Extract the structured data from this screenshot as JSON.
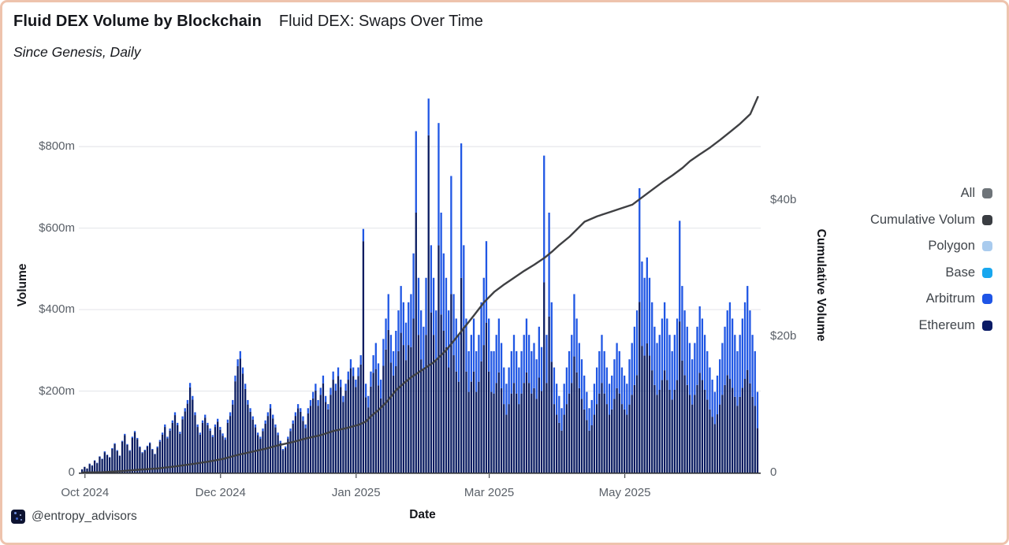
{
  "header": {
    "title_bold": "Fluid DEX Volume by Blockchain",
    "title_regular": "Fluid DEX: Swaps Over Time",
    "subtitle": "Since Genesis, Daily"
  },
  "watermark": {
    "handle": "@entropy_advisors"
  },
  "legend": {
    "items": [
      {
        "label": "All",
        "color": "#6e7479"
      },
      {
        "label": "Cumulative Volum",
        "color": "#3a3d42"
      },
      {
        "label": "Polygon",
        "color": "#a9cbee"
      },
      {
        "label": "Base",
        "color": "#18a7ef"
      },
      {
        "label": "Arbitrum",
        "color": "#1f55e6"
      },
      {
        "label": "Ethereum",
        "color": "#0a1b66"
      }
    ]
  },
  "colors": {
    "ethereum": "#0a1c61",
    "arbitrum": "#2057e4",
    "cumulative_line": "#3f4043",
    "grid": "#e8eaed",
    "axis_line": "#2e3036",
    "border": "#eec3ad"
  },
  "chart_data": {
    "type": "bar",
    "title": "Fluid DEX Volume by Blockchain — Fluid DEX: Swaps Over Time",
    "subtitle": "Since Genesis, Daily",
    "x_axis": {
      "label": "Date",
      "tick_labels": [
        "Oct 2024",
        "Dec 2024",
        "Jan 2025",
        "Mar 2025",
        "May 2025"
      ],
      "tick_day_indices": [
        1,
        55,
        109,
        162,
        216
      ]
    },
    "y_axis_left": {
      "label": "Volume",
      "tick_labels": [
        "0",
        "$200m",
        "$400m",
        "$600m",
        "$800m"
      ],
      "tick_values_m": [
        0,
        200,
        400,
        600,
        800
      ],
      "range_max_m": 951
    },
    "y_axis_right": {
      "label": "Cumulative Volume",
      "tick_labels": [
        "0",
        "$20b",
        "$40b"
      ],
      "tick_values_b": [
        0,
        20,
        40
      ],
      "range_max_b": 57
    },
    "series": {
      "stacked_order_bottom_to_top": [
        "Ethereum",
        "Arbitrum"
      ],
      "total_usd_m": [
        8,
        14,
        10,
        22,
        18,
        30,
        24,
        40,
        34,
        52,
        44,
        38,
        60,
        72,
        55,
        42,
        78,
        95,
        70,
        55,
        88,
        102,
        85,
        64,
        50,
        56,
        66,
        74,
        58,
        46,
        64,
        80,
        98,
        118,
        88,
        108,
        128,
        148,
        122,
        100,
        138,
        158,
        178,
        220,
        188,
        148,
        118,
        98,
        128,
        142,
        122,
        108,
        92,
        118,
        132,
        112,
        96,
        86,
        130,
        148,
        178,
        238,
        278,
        298,
        258,
        218,
        178,
        158,
        138,
        118,
        98,
        88,
        108,
        128,
        148,
        168,
        142,
        118,
        98,
        78,
        58,
        64,
        88,
        108,
        128,
        148,
        168,
        158,
        138,
        118,
        158,
        178,
        198,
        218,
        178,
        208,
        238,
        188,
        168,
        208,
        248,
        218,
        258,
        228,
        188,
        218,
        248,
        278,
        258,
        228,
        258,
        288,
        598,
        218,
        188,
        248,
        288,
        318,
        268,
        228,
        328,
        378,
        438,
        338,
        298,
        348,
        398,
        458,
        418,
        368,
        418,
        438,
        538,
        838,
        478,
        398,
        358,
        478,
        918,
        558,
        478,
        398,
        858,
        638,
        538,
        478,
        398,
        728,
        438,
        378,
        338,
        808,
        558,
        378,
        298,
        338,
        378,
        298,
        338,
        418,
        478,
        568,
        378,
        298,
        298,
        338,
        378,
        318,
        258,
        218,
        258,
        298,
        338,
        298,
        258,
        298,
        338,
        378,
        338,
        298,
        318,
        278,
        358,
        308,
        778,
        338,
        638,
        418,
        258,
        218,
        188,
        158,
        218,
        258,
        298,
        338,
        438,
        378,
        318,
        278,
        238,
        198,
        158,
        178,
        218,
        258,
        298,
        338,
        298,
        258,
        218,
        238,
        278,
        318,
        298,
        258,
        238,
        218,
        278,
        318,
        358,
        398,
        698,
        518,
        478,
        528,
        478,
        418,
        358,
        318,
        338,
        378,
        418,
        378,
        338,
        298,
        338,
        378,
        618,
        458,
        398,
        358,
        318,
        278,
        318,
        358,
        408,
        378,
        338,
        298,
        258,
        228,
        198,
        238,
        278,
        318,
        358,
        398,
        418,
        378,
        338,
        298,
        338,
        378,
        418,
        458,
        398,
        338,
        298,
        198
      ],
      "arbitrum_usd_m": [
        0,
        0,
        0,
        1,
        1,
        1,
        1,
        1,
        1,
        2,
        1,
        1,
        2,
        2,
        2,
        1,
        2,
        3,
        2,
        2,
        3,
        3,
        3,
        2,
        2,
        2,
        2,
        2,
        2,
        1,
        3,
        4,
        5,
        6,
        4,
        5,
        6,
        7,
        6,
        5,
        7,
        8,
        9,
        11,
        9,
        7,
        6,
        5,
        6,
        7,
        6,
        5,
        5,
        6,
        7,
        7,
        6,
        5,
        8,
        9,
        11,
        14,
        17,
        18,
        15,
        13,
        11,
        9,
        8,
        7,
        6,
        5,
        6,
        8,
        9,
        10,
        9,
        7,
        6,
        5,
        3,
        4,
        5,
        6,
        8,
        9,
        10,
        9,
        11,
        9,
        13,
        14,
        16,
        17,
        14,
        17,
        19,
        15,
        13,
        17,
        20,
        17,
        21,
        18,
        15,
        17,
        20,
        22,
        21,
        18,
        21,
        23,
        30,
        33,
        28,
        37,
        43,
        64,
        54,
        46,
        66,
        76,
        88,
        68,
        60,
        87,
        100,
        115,
        105,
        92,
        105,
        130,
        160,
        200,
        140,
        120,
        105,
        140,
        90,
        165,
        140,
        120,
        300,
        250,
        190,
        170,
        140,
        290,
        150,
        130,
        115,
        330,
        200,
        130,
        100,
        115,
        130,
        100,
        115,
        145,
        165,
        200,
        130,
        100,
        104,
        118,
        132,
        111,
        90,
        76,
        90,
        104,
        118,
        104,
        90,
        104,
        118,
        132,
        118,
        104,
        111,
        97,
        125,
        108,
        311,
        118,
        255,
        146,
        90,
        76,
        66,
        55,
        76,
        90,
        104,
        118,
        153,
        132,
        111,
        97,
        83,
        69,
        55,
        62,
        76,
        90,
        104,
        118,
        104,
        90,
        76,
        83,
        97,
        111,
        104,
        90,
        83,
        76,
        111,
        127,
        143,
        159,
        279,
        207,
        191,
        211,
        191,
        167,
        143,
        127,
        135,
        151,
        167,
        151,
        135,
        119,
        135,
        151,
        247,
        183,
        159,
        143,
        127,
        111,
        127,
        143,
        163,
        151,
        135,
        119,
        103,
        91,
        79,
        95,
        111,
        127,
        143,
        159,
        188,
        170,
        152,
        134,
        152,
        170,
        188,
        206,
        179,
        152,
        134,
        89
      ]
    },
    "cumulative_usd_b_waypoints": [
      [
        0,
        0
      ],
      [
        8,
        0.05
      ],
      [
        15,
        0.2
      ],
      [
        22,
        0.4
      ],
      [
        30,
        0.6
      ],
      [
        37,
        0.9
      ],
      [
        43,
        1.2
      ],
      [
        50,
        1.6
      ],
      [
        56,
        2.0
      ],
      [
        62,
        2.6
      ],
      [
        67,
        3.0
      ],
      [
        73,
        3.5
      ],
      [
        78,
        4.0
      ],
      [
        84,
        4.5
      ],
      [
        89,
        5.0
      ],
      [
        95,
        5.5
      ],
      [
        100,
        6.1
      ],
      [
        105,
        6.5
      ],
      [
        110,
        7.0
      ],
      [
        113,
        7.5
      ],
      [
        115,
        8.3
      ],
      [
        118,
        9.2
      ],
      [
        121,
        10.3
      ],
      [
        125,
        12.1
      ],
      [
        128,
        13.1
      ],
      [
        131,
        14.0
      ],
      [
        136,
        15.2
      ],
      [
        140,
        16.2
      ],
      [
        145,
        18.0
      ],
      [
        150,
        20.3
      ],
      [
        156,
        23.1
      ],
      [
        160,
        25.0
      ],
      [
        164,
        26.5
      ],
      [
        168,
        27.6
      ],
      [
        172,
        28.6
      ],
      [
        176,
        29.6
      ],
      [
        180,
        30.5
      ],
      [
        184,
        31.5
      ],
      [
        187,
        32.4
      ],
      [
        190,
        33.4
      ],
      [
        194,
        34.6
      ],
      [
        197,
        35.7
      ],
      [
        200,
        36.8
      ],
      [
        205,
        37.6
      ],
      [
        210,
        38.2
      ],
      [
        214,
        38.7
      ],
      [
        219,
        39.3
      ],
      [
        223,
        40.4
      ],
      [
        227,
        41.5
      ],
      [
        231,
        42.6
      ],
      [
        235,
        43.6
      ],
      [
        239,
        44.7
      ],
      [
        242,
        45.7
      ],
      [
        246,
        46.7
      ],
      [
        250,
        47.7
      ],
      [
        254,
        48.8
      ],
      [
        258,
        50.0
      ],
      [
        262,
        51.2
      ],
      [
        266,
        52.6
      ],
      [
        269,
        55.1
      ]
    ],
    "legend_position": "right",
    "grid": "horizontal-only"
  }
}
